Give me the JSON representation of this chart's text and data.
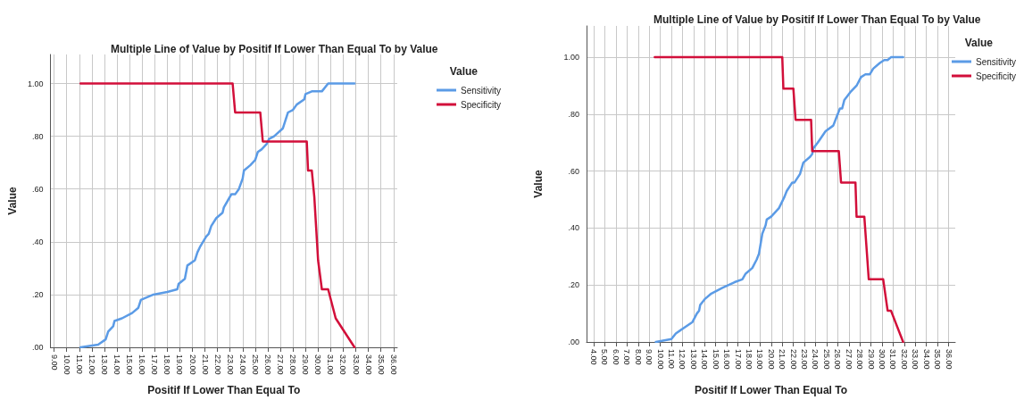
{
  "chart_data": [
    {
      "type": "line",
      "title": "Multiple Line of Value by Positif If Lower Than Equal To by Value",
      "xlabel": "Positif If Lower Than Equal To",
      "ylabel": "Value",
      "legend_title": "Value",
      "legend": "top right",
      "grid": true,
      "marker": "none",
      "line_style": "solid",
      "xlim": [
        8.7,
        36.3
      ],
      "ylim": [
        0,
        1.11
      ],
      "xticks": [
        {
          "value": 9,
          "label": "9.00"
        },
        {
          "value": 10,
          "label": "10.00"
        },
        {
          "value": 11,
          "label": "11.00"
        },
        {
          "value": 12,
          "label": "12.00"
        },
        {
          "value": 13,
          "label": "13.00"
        },
        {
          "value": 14,
          "label": "14.00"
        },
        {
          "value": 15,
          "label": "15.00"
        },
        {
          "value": 16,
          "label": "16.00"
        },
        {
          "value": 17,
          "label": "17.00"
        },
        {
          "value": 18,
          "label": "18.00"
        },
        {
          "value": 19,
          "label": "19.00"
        },
        {
          "value": 20,
          "label": "20.00"
        },
        {
          "value": 21,
          "label": "21.00"
        },
        {
          "value": 22,
          "label": "22.00"
        },
        {
          "value": 23,
          "label": "23.00"
        },
        {
          "value": 24,
          "label": "24.00"
        },
        {
          "value": 25,
          "label": "25.00"
        },
        {
          "value": 26,
          "label": "26.00"
        },
        {
          "value": 27,
          "label": "27.00"
        },
        {
          "value": 28,
          "label": "28.00"
        },
        {
          "value": 29,
          "label": "29.00"
        },
        {
          "value": 30,
          "label": "30.00"
        },
        {
          "value": 31,
          "label": "31.00"
        },
        {
          "value": 32,
          "label": "32.00"
        },
        {
          "value": 33,
          "label": "33.00"
        },
        {
          "value": 34,
          "label": "34.00"
        },
        {
          "value": 35,
          "label": "35.00"
        },
        {
          "value": 36,
          "label": "36.00"
        }
      ],
      "yticks": [
        {
          "value": 0,
          "label": ".00"
        },
        {
          "value": 0.2,
          "label": ".20"
        },
        {
          "value": 0.4,
          "label": ".40"
        },
        {
          "value": 0.6,
          "label": ".60"
        },
        {
          "value": 0.8,
          "label": ".80"
        },
        {
          "value": 1,
          "label": "1.00"
        }
      ],
      "series": [
        {
          "name": "Sensitivity",
          "color": "#5b9be6",
          "x": [
            11.1,
            12.5,
            13.1,
            13.3,
            13.7,
            13.8,
            14.4,
            15.2,
            15.7,
            15.9,
            16.9,
            18.0,
            18.8,
            18.9,
            19.4,
            19.6,
            20.2,
            20.4,
            20.6,
            21.1,
            21.3,
            21.5,
            21.9,
            22.4,
            22.5,
            23.1,
            23.4,
            23.7,
            24.0,
            24.1,
            24.6,
            25.0,
            25.2,
            25.5,
            25.9,
            26.1,
            26.5,
            27.2,
            27.4,
            27.6,
            28.0,
            28.3,
            28.9,
            29.0,
            29.5,
            30.3,
            30.8,
            32.9
          ],
          "values": [
            0,
            0.01,
            0.03,
            0.06,
            0.08,
            0.1,
            0.11,
            0.13,
            0.15,
            0.18,
            0.2,
            0.21,
            0.22,
            0.24,
            0.26,
            0.31,
            0.33,
            0.36,
            0.38,
            0.42,
            0.43,
            0.46,
            0.49,
            0.51,
            0.53,
            0.58,
            0.58,
            0.6,
            0.64,
            0.67,
            0.69,
            0.71,
            0.74,
            0.75,
            0.77,
            0.79,
            0.8,
            0.83,
            0.86,
            0.89,
            0.9,
            0.92,
            0.94,
            0.96,
            0.97,
            0.97,
            1.0,
            1.0
          ]
        },
        {
          "name": "Specificity",
          "color": "#d20f3a",
          "x": [
            11.1,
            23.2,
            23.4,
            25.4,
            25.6,
            29.1,
            29.2,
            29.5,
            29.7,
            30.0,
            30.3,
            30.8,
            31.4,
            32.9
          ],
          "values": [
            1.0,
            1.0,
            0.89,
            0.89,
            0.78,
            0.78,
            0.67,
            0.67,
            0.57,
            0.33,
            0.22,
            0.22,
            0.11,
            0
          ]
        }
      ]
    },
    {
      "type": "line",
      "title": "Multiple Line of Value by Positif If Lower Than Equal To by Value",
      "xlabel": "Positif If Lower Than Equal To",
      "ylabel": "Value",
      "legend_title": "Value",
      "legend": "top right",
      "grid": true,
      "marker": "none",
      "line_style": "solid",
      "xlim": [
        3.35,
        36.6
      ],
      "ylim": [
        0,
        1.11
      ],
      "xticks": [
        {
          "value": 4,
          "label": "4.00"
        },
        {
          "value": 5,
          "label": "5.00"
        },
        {
          "value": 6,
          "label": "6.00"
        },
        {
          "value": 7,
          "label": "7.00"
        },
        {
          "value": 8,
          "label": "8.00"
        },
        {
          "value": 9,
          "label": "9.00"
        },
        {
          "value": 10,
          "label": "10.00"
        },
        {
          "value": 11,
          "label": "11.00"
        },
        {
          "value": 12,
          "label": "12.00"
        },
        {
          "value": 13,
          "label": "13.00"
        },
        {
          "value": 14,
          "label": "14.00"
        },
        {
          "value": 15,
          "label": "15.00"
        },
        {
          "value": 16,
          "label": "16.00"
        },
        {
          "value": 17,
          "label": "17.00"
        },
        {
          "value": 18,
          "label": "18.00"
        },
        {
          "value": 19,
          "label": "19.00"
        },
        {
          "value": 20,
          "label": "20.00"
        },
        {
          "value": 21,
          "label": "21.00"
        },
        {
          "value": 22,
          "label": "22.00"
        },
        {
          "value": 23,
          "label": "23.00"
        },
        {
          "value": 24,
          "label": "24.00"
        },
        {
          "value": 25,
          "label": "25.00"
        },
        {
          "value": 26,
          "label": "26.00"
        },
        {
          "value": 27,
          "label": "27.00"
        },
        {
          "value": 28,
          "label": "28.00"
        },
        {
          "value": 29,
          "label": "29.00"
        },
        {
          "value": 30,
          "label": "30.00"
        },
        {
          "value": 31,
          "label": "31.00"
        },
        {
          "value": 32,
          "label": "32.00"
        },
        {
          "value": 33,
          "label": "33.00"
        },
        {
          "value": 34,
          "label": "34.00"
        },
        {
          "value": 35,
          "label": "35.00"
        },
        {
          "value": 36,
          "label": "36.00"
        }
      ],
      "yticks": [
        {
          "value": 0,
          "label": ".00"
        },
        {
          "value": 0.2,
          "label": ".20"
        },
        {
          "value": 0.4,
          "label": ".40"
        },
        {
          "value": 0.6,
          "label": ".60"
        },
        {
          "value": 0.8,
          "label": ".80"
        },
        {
          "value": 1,
          "label": "1.00"
        }
      ],
      "series": [
        {
          "name": "Sensitivity",
          "color": "#5b9be6",
          "x": [
            9.6,
            11.0,
            11.4,
            12.9,
            13.3,
            13.5,
            13.6,
            14.0,
            14.6,
            15.1,
            15.6,
            16.7,
            17.4,
            17.7,
            18.3,
            18.7,
            18.9,
            19.2,
            19.5,
            19.6,
            20.0,
            20.7,
            21.2,
            21.4,
            21.9,
            22.1,
            22.6,
            22.9,
            23.5,
            23.7,
            23.8,
            24.2,
            24.9,
            25.6,
            25.9,
            26.2,
            26.4,
            26.6,
            27.2,
            27.7,
            28.1,
            28.5,
            28.9,
            29.2,
            29.8,
            30.2,
            30.5,
            30.8,
            31.9
          ],
          "values": [
            0,
            0.01,
            0.03,
            0.07,
            0.1,
            0.11,
            0.13,
            0.15,
            0.17,
            0.18,
            0.19,
            0.21,
            0.22,
            0.24,
            0.26,
            0.29,
            0.31,
            0.38,
            0.41,
            0.43,
            0.44,
            0.47,
            0.51,
            0.53,
            0.56,
            0.56,
            0.59,
            0.63,
            0.65,
            0.66,
            0.68,
            0.7,
            0.74,
            0.76,
            0.79,
            0.82,
            0.82,
            0.85,
            0.88,
            0.9,
            0.93,
            0.94,
            0.94,
            0.96,
            0.98,
            0.99,
            0.99,
            1.0,
            1.0
          ]
        },
        {
          "name": "Specificity",
          "color": "#d20f3a",
          "x": [
            9.5,
            21.0,
            21.1,
            22.0,
            22.2,
            23.6,
            23.7,
            26.1,
            26.3,
            27.6,
            27.7,
            28.4,
            28.8,
            30.1,
            30.5,
            30.8,
            31.9
          ],
          "values": [
            1.0,
            1.0,
            0.89,
            0.89,
            0.78,
            0.78,
            0.67,
            0.67,
            0.56,
            0.56,
            0.44,
            0.44,
            0.22,
            0.22,
            0.11,
            0.11,
            0
          ]
        }
      ]
    }
  ]
}
